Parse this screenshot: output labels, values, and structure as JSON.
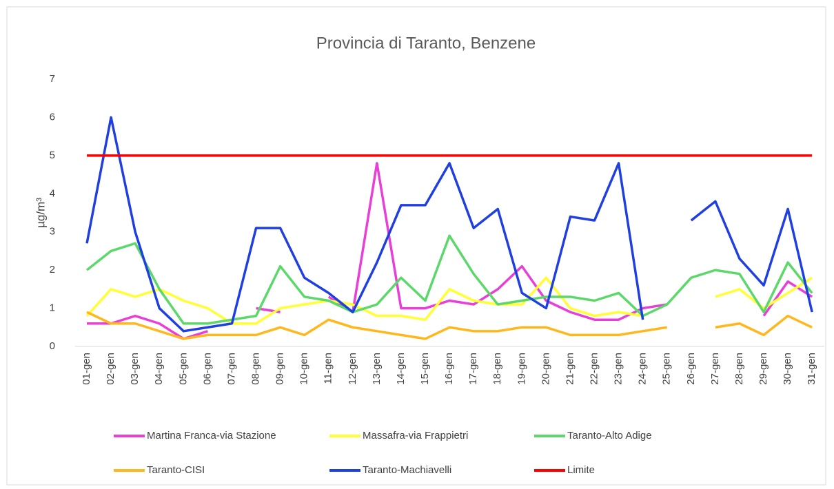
{
  "chart_data": {
    "type": "line",
    "title": "Provincia di Taranto, Benzene",
    "y_label": "µg/m³",
    "categories": [
      "01-gen",
      "02-gen",
      "03-gen",
      "04-gen",
      "05-gen",
      "06-gen",
      "07-gen",
      "08-gen",
      "09-gen",
      "10-gen",
      "11-gen",
      "12-gen",
      "13-gen",
      "14-gen",
      "15-gen",
      "16-gen",
      "17-gen",
      "18-gen",
      "19-gen",
      "20-gen",
      "21-gen",
      "22-gen",
      "23-gen",
      "24-gen",
      "25-gen",
      "26-gen",
      "27-gen",
      "28-gen",
      "29-gen",
      "30-gen",
      "31-gen"
    ],
    "ylim": [
      0,
      7
    ],
    "yticks": [
      0,
      1,
      2,
      3,
      4,
      5,
      6,
      7
    ],
    "series": [
      {
        "name": "Martina Franca-via Stazione",
        "color": "#e83fd6",
        "values": [
          0.6,
          0.6,
          0.8,
          0.6,
          0.2,
          0.4,
          null,
          1.0,
          0.9,
          null,
          1.3,
          0.9,
          4.8,
          1.0,
          1.0,
          1.2,
          1.1,
          1.5,
          2.1,
          1.2,
          0.9,
          0.7,
          0.7,
          1.0,
          1.1,
          null,
          null,
          null,
          0.8,
          1.7,
          1.3
        ]
      },
      {
        "name": "Massafra-via Frappietri",
        "color": "#ffff33",
        "values": [
          0.8,
          1.5,
          1.3,
          1.5,
          1.2,
          1.0,
          0.6,
          0.6,
          1.0,
          1.1,
          1.2,
          1.1,
          0.8,
          0.8,
          0.7,
          1.5,
          1.2,
          1.1,
          1.1,
          1.8,
          1.0,
          0.8,
          0.9,
          0.8,
          null,
          null,
          1.3,
          1.5,
          1.0,
          1.4,
          1.8
        ]
      },
      {
        "name": "Taranto-Alto Adige",
        "color": "#5cd86a",
        "values": [
          2.0,
          2.5,
          2.7,
          1.5,
          0.6,
          0.6,
          0.7,
          0.8,
          2.1,
          1.3,
          1.2,
          0.9,
          1.1,
          1.8,
          1.2,
          2.9,
          1.9,
          1.1,
          1.2,
          1.3,
          1.3,
          1.2,
          1.4,
          0.8,
          1.1,
          1.8,
          2.0,
          1.9,
          0.9,
          2.2,
          1.4
        ]
      },
      {
        "name": "Taranto-CISI",
        "color": "#ffb71c",
        "values": [
          0.9,
          0.6,
          0.6,
          0.4,
          0.2,
          0.3,
          0.3,
          0.3,
          0.5,
          0.3,
          0.7,
          0.5,
          0.4,
          0.3,
          0.2,
          0.5,
          0.4,
          0.4,
          0.5,
          0.5,
          0.3,
          0.3,
          0.3,
          0.4,
          0.5,
          null,
          0.5,
          0.6,
          0.3,
          0.8,
          0.5
        ]
      },
      {
        "name": "Taranto-Machiavelli",
        "color": "#1f3fe0",
        "values": [
          2.7,
          6.0,
          3.0,
          1.0,
          0.4,
          0.5,
          0.6,
          3.1,
          3.1,
          1.8,
          1.4,
          0.9,
          2.2,
          3.7,
          3.7,
          4.8,
          3.1,
          3.6,
          1.4,
          1.0,
          3.4,
          3.3,
          4.8,
          0.7,
          null,
          3.3,
          3.8,
          2.3,
          1.6,
          3.6,
          0.9
        ]
      },
      {
        "name": "Limite",
        "color": "#ff0000",
        "values": [
          5,
          5,
          5,
          5,
          5,
          5,
          5,
          5,
          5,
          5,
          5,
          5,
          5,
          5,
          5,
          5,
          5,
          5,
          5,
          5,
          5,
          5,
          5,
          5,
          5,
          5,
          5,
          5,
          5,
          5,
          5
        ]
      }
    ]
  }
}
